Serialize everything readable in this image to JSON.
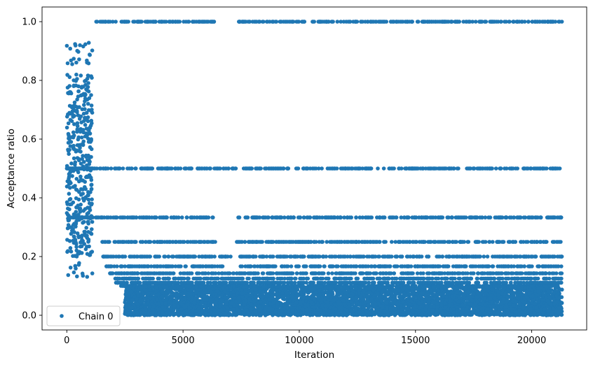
{
  "chart_data": {
    "type": "scatter",
    "title": "",
    "xlabel": "Iteration",
    "ylabel": "Acceptance ratio",
    "xlim": [
      -1065,
      22365
    ],
    "ylim": [
      -0.05,
      1.05
    ],
    "x_ticks": [
      0,
      5000,
      10000,
      15000,
      20000
    ],
    "x_tick_labels": [
      "0",
      "5000",
      "10000",
      "15000",
      "20000"
    ],
    "y_ticks": [
      0.0,
      0.2,
      0.4,
      0.6,
      0.8,
      1.0
    ],
    "y_tick_labels": [
      "0.0",
      "0.2",
      "0.4",
      "0.6",
      "0.8",
      "1.0"
    ],
    "grid": false,
    "legend": {
      "position": "lower-left",
      "entries": [
        "Chain 0"
      ]
    },
    "series": [
      {
        "name": "Chain 0",
        "color": "#1f77b4",
        "marker": "circle",
        "n_points": 21300,
        "x_range": [
          0,
          21300
        ],
        "description_of_values": "Warm-up phase (x 0–1100) spread over 0.13–0.93; afterwards values lie on discrete levels with gaps where no points occur.",
        "bands": [
          {
            "y": 1.0,
            "x_segments": [
              [
                1100,
                6450
              ],
              [
                7350,
                21300
              ]
            ]
          },
          {
            "y": 0.5,
            "x_segments": [
              [
                1100,
                7300
              ],
              [
                7600,
                13400
              ],
              [
                13600,
                21300
              ]
            ]
          },
          {
            "y": 0.333,
            "x_segments": [
              [
                1100,
                6300
              ],
              [
                7350,
                21300
              ]
            ]
          },
          {
            "y": 0.25,
            "x_segments": [
              [
                1400,
                6400
              ],
              [
                7300,
                21300
              ]
            ]
          },
          {
            "y": 0.2,
            "x_segments": [
              [
                1550,
                7100
              ],
              [
                7400,
                21300
              ]
            ]
          },
          {
            "y": 0.1667,
            "x_segments": [
              [
                1700,
                6950
              ],
              [
                7400,
                21300
              ]
            ]
          },
          {
            "y": 0.1429,
            "x_segments": [
              [
                1800,
                21300
              ]
            ]
          },
          {
            "y": 0.125,
            "x_segments": [
              [
                2000,
                21300
              ]
            ]
          },
          {
            "y": 0.111,
            "x_segments": [
              [
                2100,
                21300
              ]
            ]
          },
          {
            "y": 0.1,
            "x_segments": [
              [
                2250,
                21300
              ]
            ]
          }
        ],
        "dense_region": {
          "x": [
            2500,
            21300
          ],
          "y": [
            0.0,
            0.1
          ]
        },
        "warmup_region": {
          "x": [
            0,
            1100
          ],
          "y": [
            0.13,
            0.93
          ]
        }
      }
    ]
  }
}
